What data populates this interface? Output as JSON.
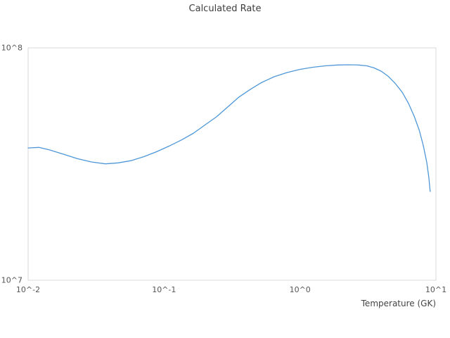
{
  "colors": {
    "background": "#ffffff",
    "plot_border": "#d9d9d9",
    "line": "#4f97d7",
    "title_text": "#3d3d3d",
    "tick_text": "#555555"
  },
  "chart_data": {
    "type": "line",
    "title": "Calculated Rate",
    "xlabel": "Temperature (GK)",
    "ylabel": "",
    "x_scale": "log",
    "y_scale": "log",
    "xlim": [
      0.01,
      10
    ],
    "ylim": [
      10000000.0,
      100000000.0
    ],
    "grid": false,
    "legend": false,
    "x_ticks": [
      {
        "value": 0.01,
        "label": "10^-2"
      },
      {
        "value": 0.1,
        "label": "10^-1"
      },
      {
        "value": 1,
        "label": "10^0"
      },
      {
        "value": 10,
        "label": "10^1"
      }
    ],
    "y_ticks": [
      {
        "value": 10000000.0,
        "label": "10^7"
      },
      {
        "value": 100000000.0,
        "label": "10^8"
      }
    ],
    "series": [
      {
        "name": "calculated-rate",
        "color": "#4f97d7",
        "points": [
          [
            0.01,
            37100000.0
          ],
          [
            0.012,
            37300000.0
          ],
          [
            0.0143,
            36400000.0
          ],
          [
            0.0181,
            34900000.0
          ],
          [
            0.023,
            33400000.0
          ],
          [
            0.0292,
            32300000.0
          ],
          [
            0.037,
            31700000.0
          ],
          [
            0.0459,
            32000000.0
          ],
          [
            0.057,
            32700000.0
          ],
          [
            0.0707,
            34000000.0
          ],
          [
            0.0877,
            35700000.0
          ],
          [
            0.109,
            37800000.0
          ],
          [
            0.135,
            40200000.0
          ],
          [
            0.165,
            43000000.0
          ],
          [
            0.201,
            46700000.0
          ],
          [
            0.243,
            50500000.0
          ],
          [
            0.294,
            55700000.0
          ],
          [
            0.354,
            61300000.0
          ],
          [
            0.431,
            66300000.0
          ],
          [
            0.523,
            71000000.0
          ],
          [
            0.645,
            75100000.0
          ],
          [
            0.8,
            78300000.0
          ],
          [
            0.993,
            80800000.0
          ],
          [
            1.23,
            82500000.0
          ],
          [
            1.53,
            83700000.0
          ],
          [
            1.89,
            84400000.0
          ],
          [
            2.25,
            84600000.0
          ],
          [
            2.69,
            84400000.0
          ],
          [
            3.1,
            83700000.0
          ],
          [
            3.5,
            82000000.0
          ],
          [
            3.96,
            79400000.0
          ],
          [
            4.44,
            75600000.0
          ],
          [
            5.0,
            70500000.0
          ],
          [
            5.65,
            64400000.0
          ],
          [
            6.29,
            57600000.0
          ],
          [
            6.92,
            50800000.0
          ],
          [
            7.54,
            44200000.0
          ],
          [
            8.08,
            37900000.0
          ],
          [
            8.57,
            32100000.0
          ],
          [
            8.87,
            27700000.0
          ],
          [
            9.07,
            24100000.0
          ]
        ]
      }
    ]
  }
}
